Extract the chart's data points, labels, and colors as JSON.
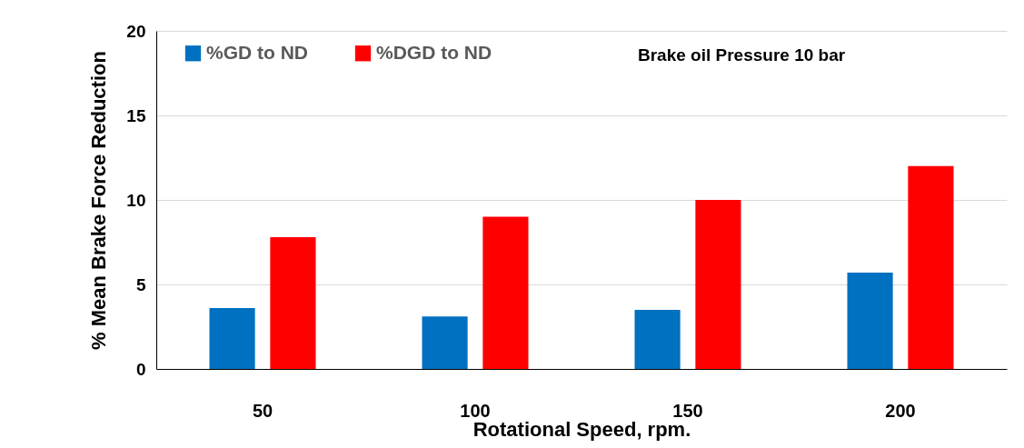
{
  "chart_data": {
    "type": "bar",
    "xlabel": "Rotational Speed, rpm.",
    "ylabel": "% Mean Brake Force Reduction",
    "categories": [
      "50",
      "100",
      "150",
      "200"
    ],
    "series": [
      {
        "name": "%GD to ND",
        "color": "#0070c0",
        "values": [
          3.6,
          3.1,
          3.5,
          5.7
        ]
      },
      {
        "name": "%DGD to ND",
        "color": "#ff0000",
        "values": [
          7.8,
          9.0,
          10.0,
          12.0
        ]
      }
    ],
    "ylim": [
      0,
      20
    ],
    "yticks": [
      0,
      5,
      10,
      15,
      20
    ],
    "grid": "y",
    "legend": "top left",
    "annotations": [
      "Brake oil Pressure 10 bar"
    ]
  }
}
